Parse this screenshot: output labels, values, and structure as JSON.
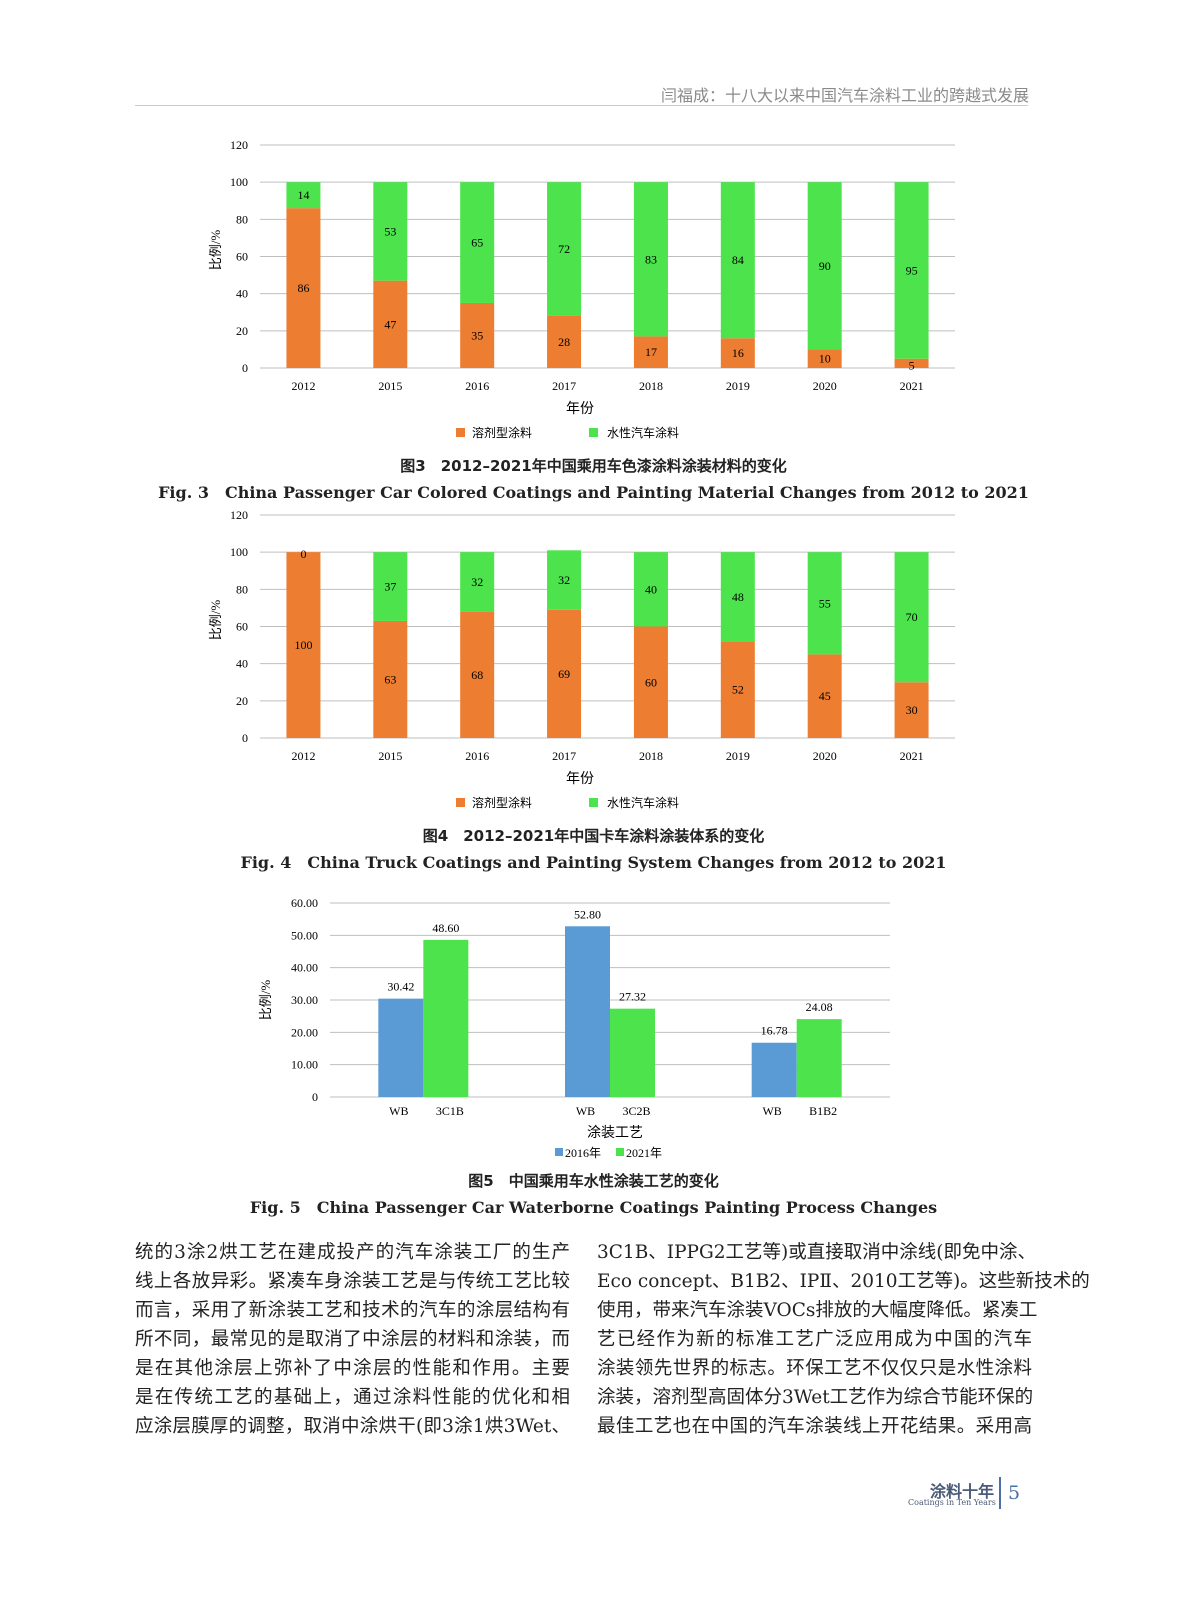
{
  "header": {
    "running_title": "闫福成：十八大以来中国汽车涂料工业的跨越式发展"
  },
  "colors": {
    "solvent": "#ED7D31",
    "water": "#4CE34C",
    "y2016": "#5B9BD5",
    "y2021": "#4CE34C",
    "grid": "#bfbfbf"
  },
  "chart_data": [
    {
      "type": "bar",
      "stacked": true,
      "categories": [
        "2012",
        "2015",
        "2016",
        "2017",
        "2018",
        "2019",
        "2020",
        "2021"
      ],
      "series": [
        {
          "name": "溶剂型涂料",
          "values": [
            86,
            47,
            35,
            28,
            17,
            16,
            10,
            5
          ]
        },
        {
          "name": "水性汽车涂料",
          "values": [
            14,
            53,
            65,
            72,
            83,
            84,
            90,
            95
          ]
        }
      ],
      "xlabel": "年份",
      "ylabel": "比例/%",
      "ylim": [
        0,
        120
      ],
      "yticks": [
        "0",
        "20",
        "40",
        "60",
        "80",
        "100",
        "120"
      ],
      "grid": true,
      "legend": "bottom"
    },
    {
      "type": "bar",
      "stacked": true,
      "categories": [
        "2012",
        "2015",
        "2016",
        "2017",
        "2018",
        "2019",
        "2020",
        "2021"
      ],
      "series": [
        {
          "name": "溶剂型涂料",
          "values": [
            100,
            63,
            68,
            69,
            60,
            52,
            45,
            30
          ]
        },
        {
          "name": "水性汽车涂料",
          "values": [
            0,
            37,
            32,
            32,
            40,
            48,
            55,
            70
          ]
        }
      ],
      "xlabel": "年份",
      "ylabel": "比例/%",
      "ylim": [
        0,
        120
      ],
      "yticks": [
        "0",
        "20",
        "40",
        "60",
        "80",
        "100",
        "120"
      ],
      "grid": true,
      "legend": "bottom"
    },
    {
      "type": "bar",
      "stacked": false,
      "groups": [
        [
          "WB",
          "3C1B"
        ],
        [
          "WB",
          "3C2B"
        ],
        [
          "WB",
          "B1B2"
        ]
      ],
      "series": [
        {
          "name": "2016年",
          "values": [
            30.42,
            52.8,
            16.78
          ],
          "labels": [
            "30.42",
            "52.80",
            "16.78"
          ]
        },
        {
          "name": "2021年",
          "values": [
            48.6,
            27.32,
            24.08
          ],
          "labels": [
            "48.60",
            "27.32",
            "24.08"
          ]
        }
      ],
      "xlabel": "涂装工艺",
      "ylabel": "比例/%",
      "ylim": [
        0,
        60
      ],
      "yticks": [
        "0",
        "10.00",
        "20.00",
        "30.00",
        "40.00",
        "50.00",
        "60.00"
      ],
      "grid": true,
      "legend": "bottom"
    }
  ],
  "captions": {
    "fig3_zh": "图3　2012–2021年中国乘用车色漆涂料涂装材料的变化",
    "fig3_en": "Fig. 3　China Passenger Car Colored Coatings and Painting Material Changes from 2012 to 2021",
    "fig4_zh": "图4　2012–2021年中国卡车涂料涂装体系的变化",
    "fig4_en": "Fig. 4　China Truck Coatings and Painting System Changes from 2012 to 2021",
    "fig5_zh": "图5　中国乘用车水性涂装工艺的变化",
    "fig5_en": "Fig. 5　China Passenger Car Waterborne Coatings Painting Process Changes"
  },
  "body": {
    "left": [
      "统的3涂2烘工艺在建成投产的汽车涂装工厂的生产",
      "线上各放异彩。紧凑车身涂装工艺是与传统工艺比较",
      "而言，采用了新涂装工艺和技术的汽车的涂层结构有",
      "所不同，最常见的是取消了中涂层的材料和涂装，而",
      "是在其他涂层上弥补了中涂层的性能和作用。主要",
      "是在传统工艺的基础上，通过涂料性能的优化和相",
      "应涂层膜厚的调整，取消中涂烘干(即3涂1烘3Wet、"
    ],
    "right": [
      "3C1B、IPPG2工艺等)或直接取消中涂线(即免中涂、",
      "Eco concept、B1B2、IPⅡ、2010工艺等)。这些新技术的",
      "使用，带来汽车涂装VOCs排放的大幅度降低。紧凑工",
      "艺已经作为新的标准工艺广泛应用成为中国的汽车",
      "涂装领先世界的标志。环保工艺不仅仅只是水性涂料",
      "涂装，溶剂型高固体分3Wet工艺作为综合节能环保的",
      "最佳工艺也在中国的汽车涂装线上开花结果。采用高"
    ]
  },
  "footer": {
    "journal": "涂料十年",
    "journal_en": "Coatings in Ten Years",
    "page": "5"
  }
}
